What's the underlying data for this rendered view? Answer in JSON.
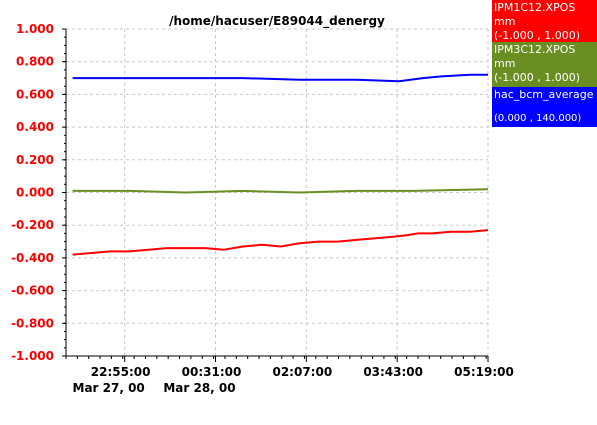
{
  "chart_data": {
    "type": "line",
    "title": "/home/hacuser/E89044_denergy",
    "xlabel": "",
    "ylabel": "",
    "ylim": [
      -1.0,
      1.0
    ],
    "y_ticks": [
      "1.000",
      "0.800",
      "0.600",
      "0.400",
      "0.200",
      "0.000",
      "-0.200",
      "-0.400",
      "-0.600",
      "-0.800",
      "-1.000"
    ],
    "x_ticks": [
      {
        "time": "22:55:00",
        "date": "Mar 27, 00"
      },
      {
        "time": "00:31:00",
        "date": "Mar 28, 00"
      },
      {
        "time": "02:07:00",
        "date": ""
      },
      {
        "time": "03:43:00",
        "date": ""
      },
      {
        "time": "05:19:00",
        "date": ""
      }
    ],
    "x_range": [
      "Mar 27, 00 21:53",
      "Mar 28, 00 05:19"
    ],
    "grid": true,
    "legend_position": "right",
    "series": [
      {
        "name": "IPM1C12.XPOS",
        "units": "mm",
        "range": "(-1.000 , 1.000)",
        "color": "#ff0000",
        "x": [
          "22:00",
          "22:20",
          "22:40",
          "23:00",
          "23:20",
          "23:40",
          "00:00",
          "00:20",
          "00:40",
          "01:00",
          "01:20",
          "01:40",
          "02:00",
          "02:20",
          "02:40",
          "03:00",
          "03:20",
          "03:40",
          "03:55",
          "04:05",
          "04:20",
          "04:40",
          "05:00",
          "05:19"
        ],
        "values": [
          -0.38,
          -0.37,
          -0.36,
          -0.36,
          -0.35,
          -0.34,
          -0.34,
          -0.34,
          -0.35,
          -0.33,
          -0.32,
          -0.33,
          -0.31,
          -0.3,
          -0.3,
          -0.29,
          -0.28,
          -0.27,
          -0.26,
          -0.25,
          -0.25,
          -0.24,
          -0.24,
          -0.23
        ]
      },
      {
        "name": "IPM3C12.XPOS",
        "units": "mm",
        "range": "(-1.000 , 1.000)",
        "color": "#6b8e23",
        "x": [
          "22:00",
          "23:00",
          "00:00",
          "01:00",
          "02:00",
          "03:00",
          "04:00",
          "05:19"
        ],
        "values": [
          0.01,
          0.01,
          0.0,
          0.01,
          0.0,
          0.01,
          0.01,
          0.02
        ]
      },
      {
        "name": "hac_bcm_average",
        "units": "",
        "range": "(0.000 , 140.000)",
        "color": "#0000ff",
        "x": [
          "22:00",
          "23:00",
          "00:00",
          "01:00",
          "02:00",
          "03:00",
          "03:45",
          "04:10",
          "04:30",
          "05:00",
          "05:19"
        ],
        "values": [
          0.7,
          0.7,
          0.7,
          0.7,
          0.69,
          0.69,
          0.68,
          0.7,
          0.71,
          0.72,
          0.72
        ]
      }
    ]
  }
}
